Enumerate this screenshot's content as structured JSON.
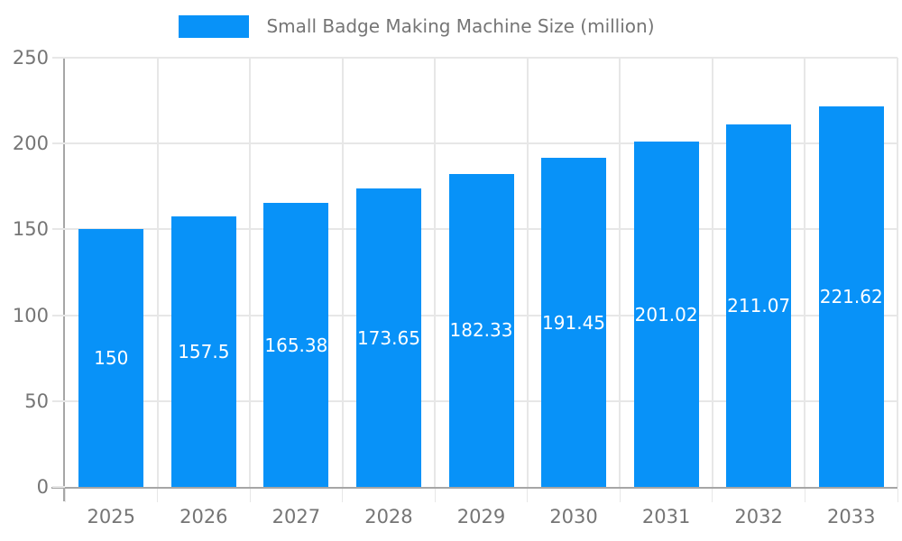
{
  "legend": {
    "label": "Small Badge Making Machine Size (million)",
    "swatch_color": "#0892f8"
  },
  "chart_data": {
    "type": "bar",
    "title": "Small Badge Making Machine Size (million)",
    "categories": [
      "2025",
      "2026",
      "2027",
      "2028",
      "2029",
      "2030",
      "2031",
      "2032",
      "2033"
    ],
    "values": [
      150,
      157.5,
      165.38,
      173.65,
      182.33,
      191.45,
      201.02,
      211.07,
      221.62
    ],
    "value_labels": [
      "150",
      "157.5",
      "165.38",
      "173.65",
      "182.33",
      "191.45",
      "201.02",
      "211.07",
      "221.62"
    ],
    "xlabel": "",
    "ylabel": "",
    "ylim": [
      0,
      250
    ],
    "yticks": [
      0,
      50,
      100,
      150,
      200,
      250
    ],
    "grid": true,
    "legend_position": "top-center",
    "colors": {
      "bar": "#0892f8",
      "axis": "#a6a6a6",
      "grid": "#e7e7e7",
      "text": "#757575",
      "bar_label": "#ffffff",
      "background": "#ffffff"
    }
  }
}
